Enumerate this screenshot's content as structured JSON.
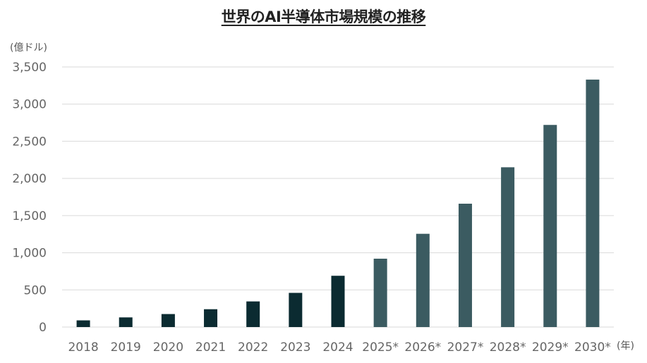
{
  "chart_data": {
    "type": "bar",
    "title": "世界のAI半導体市場規模の推移",
    "ylabel": "(億ドル)",
    "xlabel": "(年)",
    "ylim": [
      0,
      3500
    ],
    "yticks": [
      0,
      500,
      1000,
      1500,
      2000,
      2500,
      3000,
      3500
    ],
    "ytick_labels": [
      "0",
      "500",
      "1,000",
      "1,500",
      "2,000",
      "2,500",
      "3,000",
      "3,500"
    ],
    "categories": [
      "2018",
      "2019",
      "2020",
      "2021",
      "2022",
      "2023",
      "2024",
      "2025*",
      "2026*",
      "2027*",
      "2028*",
      "2029*",
      "2030*"
    ],
    "values": [
      90,
      130,
      175,
      240,
      345,
      460,
      690,
      920,
      1255,
      1660,
      2150,
      2720,
      3330
    ],
    "colors": {
      "actual": "#0b2b31",
      "forecast": "#3b5b61",
      "grid": "#d9d9d9"
    },
    "forecast_from_index": 7,
    "grid": true
  }
}
